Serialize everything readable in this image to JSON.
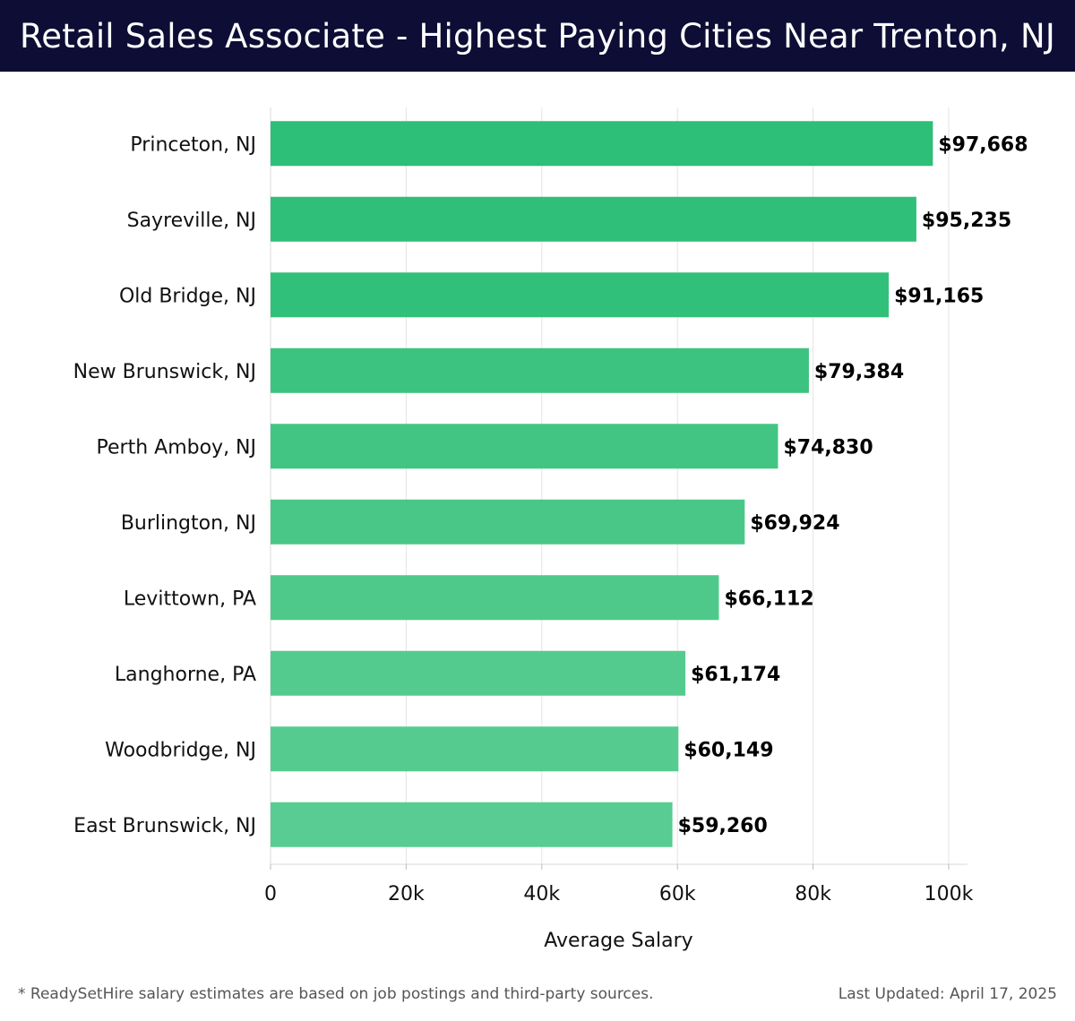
{
  "header": {
    "title": "Retail Sales Associate - Highest Paying Cities Near Trenton, NJ"
  },
  "chart_data": {
    "type": "bar",
    "orientation": "horizontal",
    "title": "Retail Sales Associate - Highest Paying Cities Near Trenton, NJ",
    "xlabel": "Average Salary",
    "ylabel": "",
    "xlim": [
      0,
      100000
    ],
    "xticks": [
      0,
      20000,
      40000,
      60000,
      80000,
      100000
    ],
    "xtick_labels": [
      "0",
      "20k",
      "40k",
      "60k",
      "80k",
      "100k"
    ],
    "grid": "vertical",
    "categories": [
      "Princeton, NJ",
      "Sayreville, NJ",
      "Old Bridge, NJ",
      "New Brunswick, NJ",
      "Perth Amboy, NJ",
      "Burlington, NJ",
      "Levittown, PA",
      "Langhorne, PA",
      "Woodbridge, NJ",
      "East Brunswick, NJ"
    ],
    "values": [
      97668,
      95235,
      91165,
      79384,
      74830,
      69924,
      66112,
      61174,
      60149,
      59260
    ],
    "value_labels": [
      "$97,668",
      "$95,235",
      "$91,165",
      "$79,384",
      "$74,830",
      "$69,924",
      "$66,112",
      "$61,174",
      "$60,149",
      "$59,260"
    ],
    "colors": [
      "#2dbe78",
      "#2fbf79",
      "#31c07a",
      "#3bc37f",
      "#42c583",
      "#49c787",
      "#4ec98a",
      "#53cb8e",
      "#55cb90",
      "#58cc92"
    ]
  },
  "footer": {
    "note": "* ReadySetHire salary estimates are based on job postings and third-party sources.",
    "updated": "Last Updated: April 17, 2025"
  }
}
